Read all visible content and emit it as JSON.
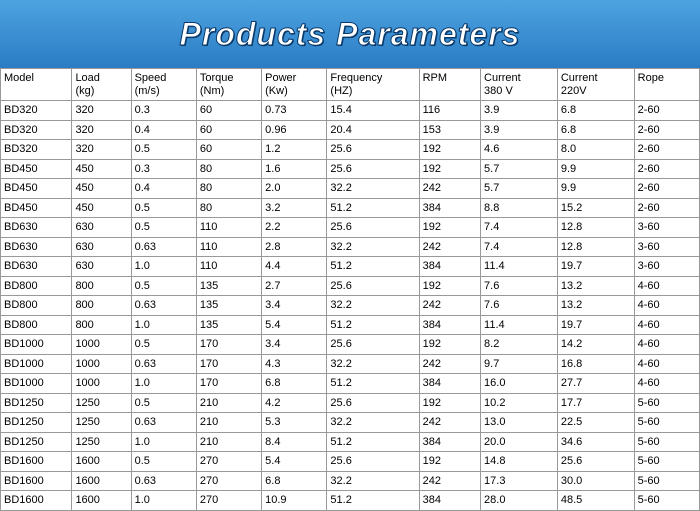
{
  "title": "Products Parameters",
  "header_bg_top": "#4da3e0",
  "header_bg_bottom": "#2b7cc4",
  "title_color": "#ffffff",
  "title_stroke": "#0a3a6b",
  "border_color": "#999999",
  "font_size_cell": 11,
  "table": {
    "columns": [
      {
        "l1": "Model",
        "l2": ""
      },
      {
        "l1": "Load",
        "l2": "(kg)"
      },
      {
        "l1": "Speed",
        "l2": "(m/s)"
      },
      {
        "l1": "Torque",
        "l2": "(Nm)"
      },
      {
        "l1": "Power",
        "l2": "(Kw)"
      },
      {
        "l1": "Frequency",
        "l2": "(HZ)"
      },
      {
        "l1": "RPM",
        "l2": ""
      },
      {
        "l1": "Current",
        "l2": "380 V"
      },
      {
        "l1": "Current",
        "l2": "220V"
      },
      {
        "l1": "Rope",
        "l2": ""
      }
    ],
    "rows": [
      [
        "BD320",
        "320",
        "0.3",
        "60",
        "0.73",
        "15.4",
        "116",
        "3.9",
        "6.8",
        "2-60"
      ],
      [
        "BD320",
        "320",
        "0.4",
        "60",
        "0.96",
        "20.4",
        "153",
        "3.9",
        "6.8",
        "2-60"
      ],
      [
        "BD320",
        "320",
        "0.5",
        "60",
        "1.2",
        "25.6",
        "192",
        "4.6",
        "8.0",
        "2-60"
      ],
      [
        "BD450",
        "450",
        "0.3",
        "80",
        "1.6",
        "25.6",
        "192",
        "5.7",
        "9.9",
        "2-60"
      ],
      [
        "BD450",
        "450",
        "0.4",
        "80",
        "2.0",
        "32.2",
        "242",
        "5.7",
        "9.9",
        "2-60"
      ],
      [
        "BD450",
        "450",
        "0.5",
        "80",
        "3.2",
        "51.2",
        "384",
        "8.8",
        "15.2",
        "2-60"
      ],
      [
        "BD630",
        "630",
        "0.5",
        "110",
        "2.2",
        "25.6",
        "192",
        "7.4",
        "12.8",
        "3-60"
      ],
      [
        "BD630",
        "630",
        "0.63",
        "110",
        "2.8",
        "32.2",
        "242",
        "7.4",
        "12.8",
        "3-60"
      ],
      [
        "BD630",
        "630",
        "1.0",
        "110",
        "4.4",
        "51.2",
        "384",
        "11.4",
        "19.7",
        "3-60"
      ],
      [
        "BD800",
        "800",
        "0.5",
        "135",
        "2.7",
        "25.6",
        "192",
        "7.6",
        "13.2",
        "4-60"
      ],
      [
        "BD800",
        "800",
        "0.63",
        "135",
        "3.4",
        "32.2",
        "242",
        "7.6",
        "13.2",
        "4-60"
      ],
      [
        "BD800",
        "800",
        "1.0",
        "135",
        "5.4",
        "51.2",
        "384",
        "11.4",
        "19.7",
        "4-60"
      ],
      [
        "BD1000",
        "1000",
        "0.5",
        "170",
        "3.4",
        "25.6",
        "192",
        "8.2",
        "14.2",
        "4-60"
      ],
      [
        "BD1000",
        "1000",
        "0.63",
        "170",
        "4.3",
        "32.2",
        "242",
        "9.7",
        "16.8",
        "4-60"
      ],
      [
        "BD1000",
        "1000",
        "1.0",
        "170",
        "6.8",
        "51.2",
        "384",
        "16.0",
        "27.7",
        "4-60"
      ],
      [
        "BD1250",
        "1250",
        "0.5",
        "210",
        "4.2",
        "25.6",
        "192",
        "10.2",
        "17.7",
        "5-60"
      ],
      [
        "BD1250",
        "1250",
        "0.63",
        "210",
        "5.3",
        "32.2",
        "242",
        "13.0",
        "22.5",
        "5-60"
      ],
      [
        "BD1250",
        "1250",
        "1.0",
        "210",
        "8.4",
        "51.2",
        "384",
        "20.0",
        "34.6",
        "5-60"
      ],
      [
        "BD1600",
        "1600",
        "0.5",
        "270",
        "5.4",
        "25.6",
        "192",
        "14.8",
        "25.6",
        "5-60"
      ],
      [
        "BD1600",
        "1600",
        "0.63",
        "270",
        "6.8",
        "32.2",
        "242",
        "17.3",
        "30.0",
        "5-60"
      ],
      [
        "BD1600",
        "1600",
        "1.0",
        "270",
        "10.9",
        "51.2",
        "384",
        "28.0",
        "48.5",
        "5-60"
      ]
    ]
  }
}
